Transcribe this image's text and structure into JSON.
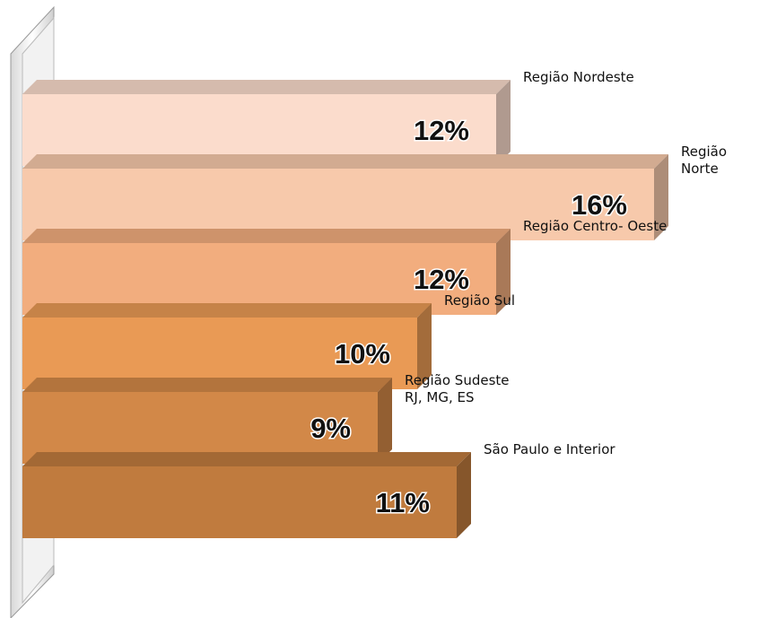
{
  "chart_data": {
    "type": "bar3d",
    "categories": [
      "Região  Nordeste",
      "Região  Norte",
      "Região  Centro- Oeste",
      "Região  Sul",
      "Região Sudeste\nRJ, MG, ES",
      "São Paulo e Interior"
    ],
    "values": [
      12,
      16,
      12,
      10,
      9,
      11
    ],
    "value_labels": [
      "12%",
      "16%",
      "12%",
      "10%",
      "9%",
      "11%"
    ],
    "colors": [
      "#fbdccc",
      "#f7c9ab",
      "#f2ad7e",
      "#e99a55",
      "#d28848",
      "#c07b3e"
    ]
  }
}
